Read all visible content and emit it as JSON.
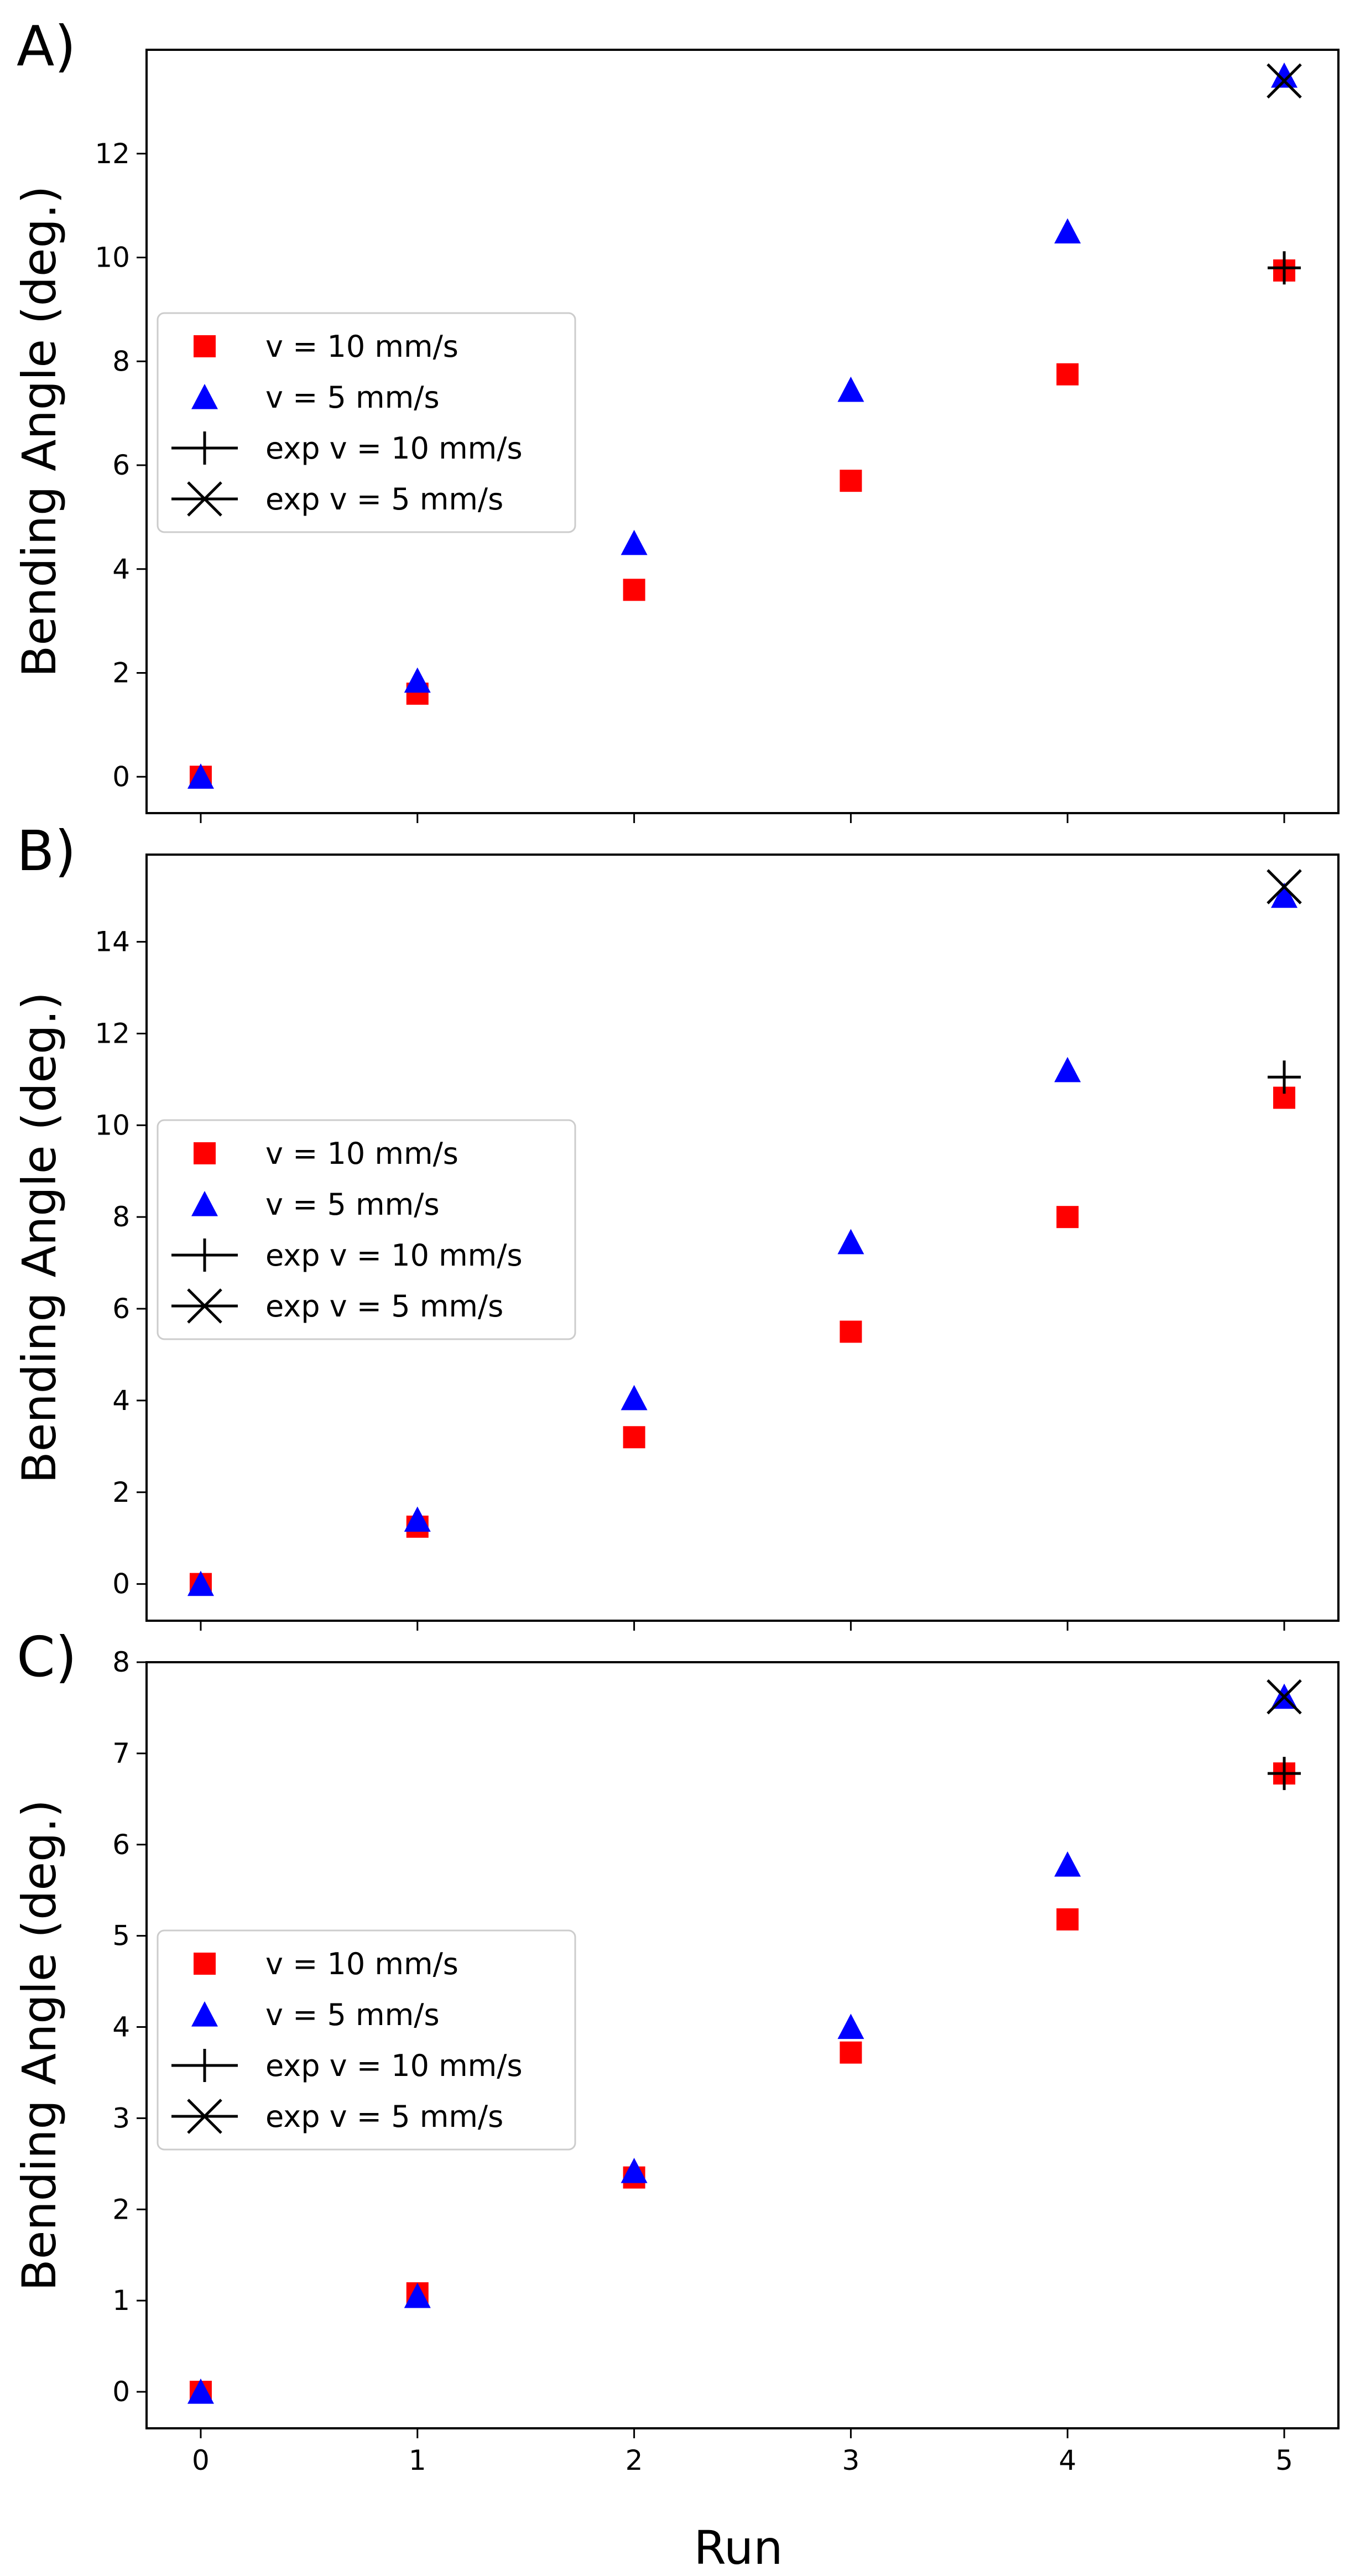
{
  "figure": {
    "xlabel": "Run",
    "colors": {
      "red": "#ff0000",
      "blue": "#0000ff",
      "black": "#000000",
      "legend_edge": "#cccccc"
    }
  },
  "chart_data": [
    {
      "type": "scatter",
      "panel_label": "A)",
      "ylabel": "Bending Angle (deg.)",
      "xlabel": "",
      "x_ticks": [
        0,
        1,
        2,
        3,
        4,
        5
      ],
      "y_ticks": [
        0,
        2,
        4,
        6,
        8,
        10,
        12
      ],
      "xlim": [
        -0.25,
        5.25
      ],
      "ylim": [
        -0.7,
        14.0
      ],
      "legend_position": "center-left",
      "series": [
        {
          "name": "v = 10 mm/s",
          "marker": "square",
          "color": "#ff0000",
          "x": [
            0,
            1,
            2,
            3,
            4,
            5
          ],
          "y": [
            0.0,
            1.6,
            3.6,
            5.7,
            7.75,
            9.75
          ]
        },
        {
          "name": "v = 5 mm/s",
          "marker": "triangle",
          "color": "#0000ff",
          "x": [
            0,
            1,
            2,
            3,
            4,
            5
          ],
          "y": [
            0.0,
            1.85,
            4.5,
            7.45,
            10.5,
            13.5
          ]
        },
        {
          "name": "exp v = 10 mm/s",
          "marker": "plus",
          "color": "#000000",
          "x": [
            5
          ],
          "y": [
            9.8
          ]
        },
        {
          "name": "exp v = 5 mm/s",
          "marker": "x",
          "color": "#000000",
          "x": [
            5
          ],
          "y": [
            13.4
          ]
        }
      ]
    },
    {
      "type": "scatter",
      "panel_label": "B)",
      "ylabel": "Bending Angle (deg.)",
      "xlabel": "",
      "x_ticks": [
        0,
        1,
        2,
        3,
        4,
        5
      ],
      "y_ticks": [
        0,
        2,
        4,
        6,
        8,
        10,
        12,
        14
      ],
      "xlim": [
        -0.25,
        5.25
      ],
      "ylim": [
        -0.8,
        15.9
      ],
      "legend_position": "center-left",
      "series": [
        {
          "name": "v = 10 mm/s",
          "marker": "square",
          "color": "#ff0000",
          "x": [
            0,
            1,
            2,
            3,
            4,
            5
          ],
          "y": [
            0.0,
            1.25,
            3.2,
            5.5,
            8.0,
            10.6
          ]
        },
        {
          "name": "v = 5 mm/s",
          "marker": "triangle",
          "color": "#0000ff",
          "x": [
            0,
            1,
            2,
            3,
            4,
            5
          ],
          "y": [
            0.0,
            1.4,
            4.05,
            7.45,
            11.2,
            15.0
          ]
        },
        {
          "name": "exp v = 10 mm/s",
          "marker": "plus",
          "color": "#000000",
          "x": [
            5
          ],
          "y": [
            11.05
          ]
        },
        {
          "name": "exp v = 5 mm/s",
          "marker": "x",
          "color": "#000000",
          "x": [
            5
          ],
          "y": [
            15.2
          ]
        }
      ]
    },
    {
      "type": "scatter",
      "panel_label": "C)",
      "ylabel": "Bending Angle (deg.)",
      "xlabel": "Run",
      "x_ticks": [
        0,
        1,
        2,
        3,
        4,
        5
      ],
      "x_tick_labels": [
        "0",
        "1",
        "2",
        "3",
        "4",
        "5"
      ],
      "y_ticks": [
        0,
        1,
        2,
        3,
        4,
        5,
        6,
        7,
        8
      ],
      "xlim": [
        -0.25,
        5.25
      ],
      "ylim": [
        -0.4,
        8.0
      ],
      "legend_position": "center-left",
      "series": [
        {
          "name": "v = 10 mm/s",
          "marker": "square",
          "color": "#ff0000",
          "x": [
            0,
            1,
            2,
            3,
            4,
            5
          ],
          "y": [
            0.0,
            1.08,
            2.35,
            3.72,
            5.18,
            6.78
          ]
        },
        {
          "name": "v = 5 mm/s",
          "marker": "triangle",
          "color": "#0000ff",
          "x": [
            0,
            1,
            2,
            3,
            4,
            5
          ],
          "y": [
            0.0,
            1.05,
            2.42,
            4.0,
            5.78,
            7.62
          ]
        },
        {
          "name": "exp v = 10 mm/s",
          "marker": "plus",
          "color": "#000000",
          "x": [
            5
          ],
          "y": [
            6.78
          ]
        },
        {
          "name": "exp v = 5 mm/s",
          "marker": "x",
          "color": "#000000",
          "x": [
            5
          ],
          "y": [
            7.62
          ]
        }
      ]
    }
  ]
}
